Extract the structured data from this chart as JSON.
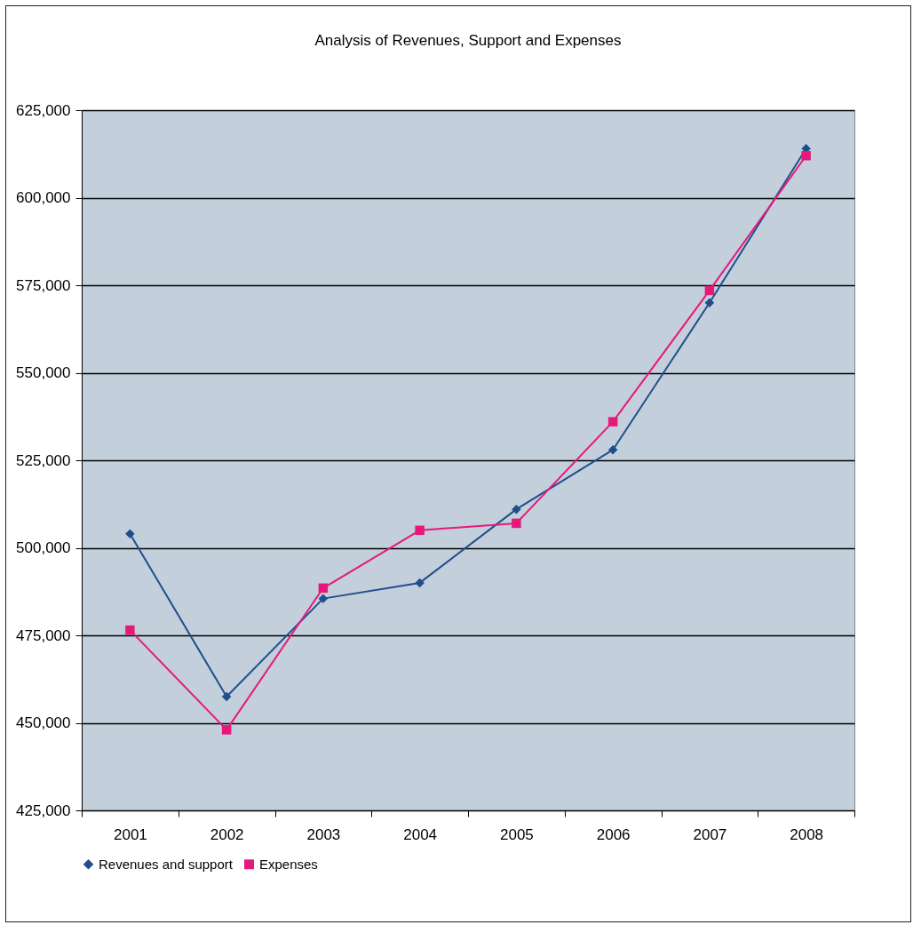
{
  "chart_data": {
    "type": "line",
    "title": "Analysis of Revenues, Support and Expenses",
    "categories": [
      "2001",
      "2002",
      "2003",
      "2004",
      "2005",
      "2006",
      "2007",
      "2008"
    ],
    "series": [
      {
        "name": "Revenues and support",
        "color": "#1f4e8c",
        "marker": "diamond",
        "values": [
          504000,
          457500,
          485500,
          490000,
          511000,
          528000,
          570000,
          614000
        ]
      },
      {
        "name": "Expenses",
        "color": "#e6197a",
        "marker": "square",
        "values": [
          476500,
          448000,
          488500,
          505000,
          507000,
          536000,
          573500,
          612000
        ]
      }
    ],
    "ylim": [
      425000,
      625000
    ],
    "yticks": [
      {
        "value": 425000,
        "label": "425,000"
      },
      {
        "value": 450000,
        "label": "450,000"
      },
      {
        "value": 475000,
        "label": "475,000"
      },
      {
        "value": 500000,
        "label": "500,000"
      },
      {
        "value": 525000,
        "label": "525,000"
      },
      {
        "value": 550000,
        "label": "550,000"
      },
      {
        "value": 575000,
        "label": "575,000"
      },
      {
        "value": 600000,
        "label": "600,000"
      },
      {
        "value": 625000,
        "label": "625,000"
      }
    ],
    "grid": "y",
    "legend": "bottom",
    "line_style": "solid"
  }
}
